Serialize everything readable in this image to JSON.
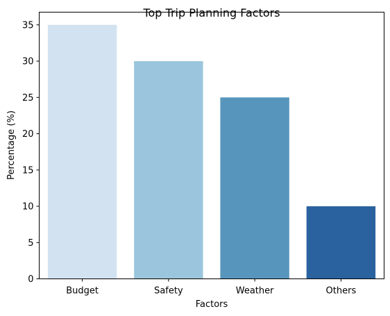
{
  "chart_data": {
    "type": "bar",
    "title": "Top Trip Planning Factors",
    "xlabel": "Factors",
    "ylabel": "Percentage (%)",
    "categories": [
      "Budget",
      "Safety",
      "Weather",
      "Others"
    ],
    "values": [
      35,
      30,
      25,
      10
    ],
    "colors": [
      "#d2e2f1",
      "#9bc5dc",
      "#5895bd",
      "#2a62a0"
    ],
    "ylim": [
      0,
      36.75
    ],
    "yticks": [
      0,
      5,
      10,
      15,
      20,
      25,
      30,
      35
    ],
    "grid": false,
    "legend": "none"
  }
}
